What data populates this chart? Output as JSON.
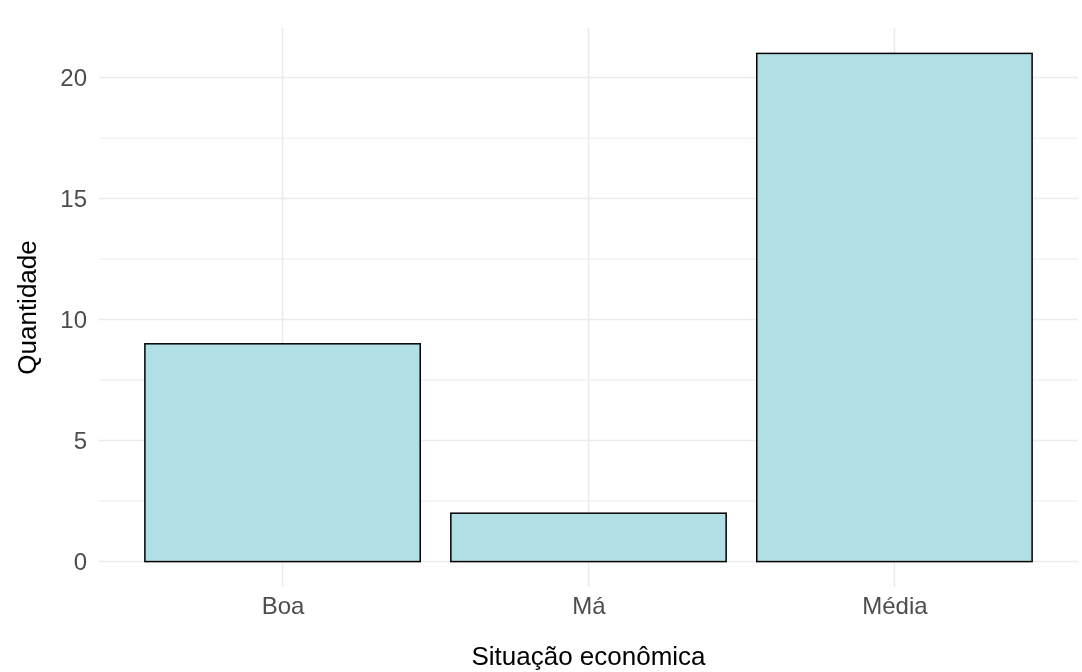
{
  "chart_data": {
    "type": "bar",
    "xlabel": "Situação econômica",
    "ylabel": "Quantidade",
    "categories": [
      "Boa",
      "Má",
      "Média"
    ],
    "values": [
      9,
      2,
      21
    ],
    "color": "#b0dfe5",
    "ylim": [
      -1.05,
      22.05
    ],
    "yticks": [
      0,
      {
        "value": 2.5,
        "label": null
      },
      5,
      {
        "value": 7.5,
        "label": null
      },
      10,
      {
        "value": 12.5,
        "label": null
      },
      15,
      {
        "value": 17.5,
        "label": null
      },
      20
    ],
    "grid": true
  }
}
